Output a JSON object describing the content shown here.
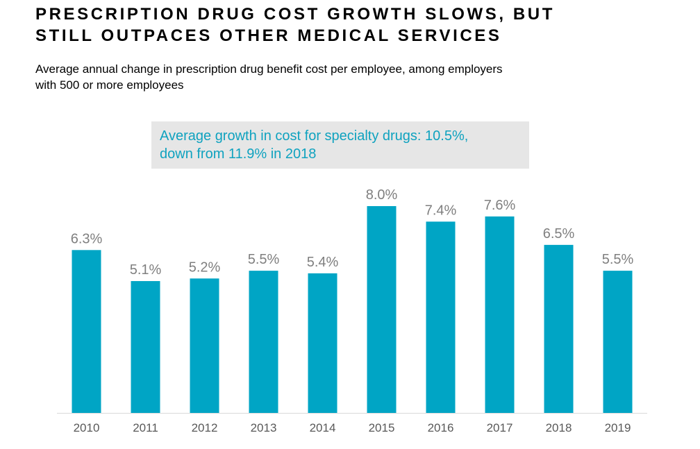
{
  "header": {
    "title_line1": "PRESCRIPTION DRUG COST GROWTH SLOWS, BUT",
    "title_line2": "STILL OUTPACES OTHER MEDICAL SERVICES",
    "subtitle_line1": "Average annual change in prescription drug benefit cost per employee, among employers",
    "subtitle_line2": "with 500 or more employees"
  },
  "callout": {
    "line1": "Average growth in cost for specialty drugs: 10.5%,",
    "line2": "down from 11.9% in 2018"
  },
  "colors": {
    "bar": "#00a5c5",
    "callout_text": "#0fa2bf",
    "callout_bg": "#e6e6e6",
    "value_label": "#7f7f7f"
  },
  "chart_data": {
    "type": "bar",
    "categories": [
      "2010",
      "2011",
      "2012",
      "2013",
      "2014",
      "2015",
      "2016",
      "2017",
      "2018",
      "2019"
    ],
    "values": [
      6.3,
      5.1,
      5.2,
      5.5,
      5.4,
      8.0,
      7.4,
      7.6,
      6.5,
      5.5
    ],
    "labels": [
      "6.3%",
      "5.1%",
      "5.2%",
      "5.5%",
      "5.4%",
      "8.0%",
      "7.4%",
      "7.6%",
      "6.5%",
      "5.5%"
    ],
    "ylim": [
      0,
      8.0
    ],
    "grid": false,
    "title": "",
    "xlabel": "",
    "ylabel": ""
  }
}
